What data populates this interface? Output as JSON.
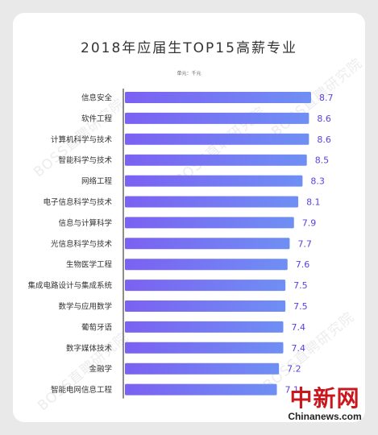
{
  "title": "2018年应届生TOP15高薪专业",
  "unit": "单元：千元",
  "watermark": "BOSS直聘研究院",
  "logo": {
    "chinese": "中新网",
    "english": "Chinanews.com"
  },
  "colors": {
    "bar_start": "#7b61f2",
    "bar_end": "#6f8ff4",
    "value": "#5b3fe0",
    "axis": "#444444"
  },
  "chart_data": {
    "type": "bar",
    "orientation": "horizontal",
    "title": "2018年应届生TOP15高薪专业",
    "unit": "单元：千元",
    "categories": [
      "信息安全",
      "软件工程",
      "计算机科学与技术",
      "智能科学与技术",
      "网络工程",
      "电子信息科学与技术",
      "信息与计算科学",
      "光信息科学与技术",
      "生物医学工程",
      "集成电路设计与集成系统",
      "数学与应用数学",
      "葡萄牙语",
      "数字媒体技术",
      "金融学",
      "智能电网信息工程"
    ],
    "values": [
      8.7,
      8.6,
      8.6,
      8.5,
      8.3,
      8.1,
      7.9,
      7.7,
      7.6,
      7.5,
      7.5,
      7.4,
      7.4,
      7.2,
      7.1
    ],
    "value_labels": [
      "8.7",
      "8.6",
      "8.6",
      "8.5",
      "8.3",
      "8.1",
      "7.9",
      "7.7",
      "7.6",
      "7.5",
      "7.5",
      "7.4",
      "7.4",
      "7.2",
      "7.1"
    ]
  }
}
